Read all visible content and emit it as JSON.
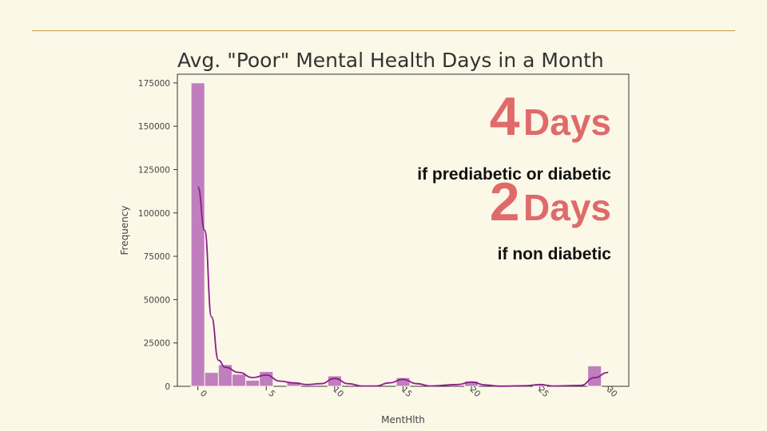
{
  "chart_data": {
    "type": "bar",
    "title": "Avg. \"Poor\" Mental Health Days in a Month",
    "xlabel": "MentHlth",
    "ylabel": "Frequency",
    "xlim": [
      -1.5,
      31.5
    ],
    "ylim": [
      0,
      180000
    ],
    "x_ticks": [
      0,
      5,
      10,
      15,
      20,
      25,
      30
    ],
    "y_ticks": [
      0,
      25000,
      50000,
      75000,
      100000,
      125000,
      150000,
      175000
    ],
    "bin_width": 1,
    "bins": [
      {
        "x": 0,
        "count": 175000
      },
      {
        "x": 1,
        "count": 8000
      },
      {
        "x": 2,
        "count": 12500
      },
      {
        "x": 3,
        "count": 7000
      },
      {
        "x": 4,
        "count": 3500
      },
      {
        "x": 5,
        "count": 8500
      },
      {
        "x": 7,
        "count": 2500
      },
      {
        "x": 10,
        "count": 6000
      },
      {
        "x": 15,
        "count": 5000
      },
      {
        "x": 20,
        "count": 3000
      },
      {
        "x": 25,
        "count": 800
      },
      {
        "x": 29,
        "count": 11800
      }
    ],
    "kde": [
      [
        0,
        115000
      ],
      [
        0.5,
        90000
      ],
      [
        1,
        40000
      ],
      [
        1.5,
        15000
      ],
      [
        2,
        11000
      ],
      [
        3,
        8000
      ],
      [
        4,
        5000
      ],
      [
        5,
        6500
      ],
      [
        6,
        3000
      ],
      [
        7,
        2000
      ],
      [
        8,
        1000
      ],
      [
        9,
        1500
      ],
      [
        10,
        4500
      ],
      [
        11,
        1500
      ],
      [
        12,
        200
      ],
      [
        13,
        200
      ],
      [
        14,
        2000
      ],
      [
        15,
        4000
      ],
      [
        16,
        1500
      ],
      [
        17,
        200
      ],
      [
        19,
        1000
      ],
      [
        20,
        2500
      ],
      [
        21,
        800
      ],
      [
        22,
        100
      ],
      [
        24,
        300
      ],
      [
        25,
        1000
      ],
      [
        26,
        200
      ],
      [
        28,
        500
      ],
      [
        29,
        5000
      ],
      [
        30,
        8000
      ]
    ],
    "bar_color": "#b970b9",
    "kde_color": "#8b1e8b",
    "grid": false,
    "legend": "none"
  },
  "callouts": [
    {
      "number": "4",
      "word": "Days",
      "subtitle": "if prediabetic or diabetic"
    },
    {
      "number": "2",
      "word": "Days",
      "subtitle": "if non diabetic"
    }
  ],
  "colors": {
    "background": "#fcf8e8",
    "rule": "#c8963c",
    "callout_accent": "#e06a6a"
  }
}
